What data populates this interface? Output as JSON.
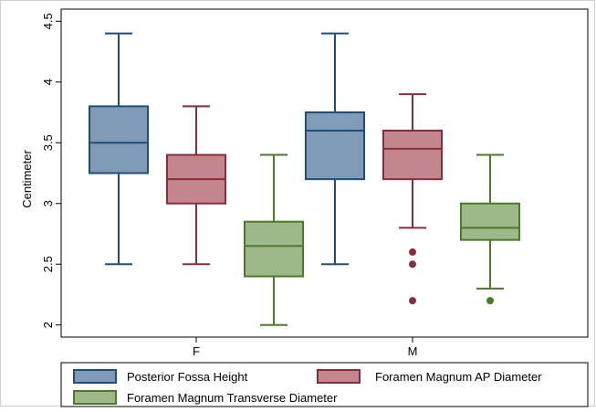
{
  "chart_data": {
    "type": "box",
    "ylabel": "Centimeter",
    "ylim": [
      1.9,
      4.6
    ],
    "yticks": [
      "2",
      "2.5",
      "3",
      "3.5",
      "4",
      "4.5"
    ],
    "ytick_values": [
      2,
      2.5,
      3,
      3.5,
      4,
      4.5
    ],
    "groups": [
      "F",
      "M"
    ],
    "legend_position": "bottom",
    "series": [
      {
        "name": "Posterior Fossa Height",
        "fill": "#7f9bb8",
        "stroke": "#1f4e79",
        "boxes": [
          {
            "group": "F",
            "whisker_low": 2.5,
            "q1": 3.25,
            "median": 3.5,
            "q3": 3.8,
            "whisker_high": 4.4,
            "outliers": []
          },
          {
            "group": "M",
            "whisker_low": 2.5,
            "q1": 3.2,
            "median": 3.6,
            "q3": 3.75,
            "whisker_high": 4.4,
            "outliers": []
          }
        ]
      },
      {
        "name": "Foramen Magnum AP Diameter",
        "fill": "#c4868e",
        "stroke": "#8b2c3a",
        "boxes": [
          {
            "group": "F",
            "whisker_low": 2.5,
            "q1": 3.0,
            "median": 3.2,
            "q3": 3.4,
            "whisker_high": 3.8,
            "outliers": []
          },
          {
            "group": "M",
            "whisker_low": 2.8,
            "q1": 3.2,
            "median": 3.45,
            "q3": 3.6,
            "whisker_high": 3.9,
            "outliers": [
              2.6,
              2.5,
              2.2
            ]
          }
        ]
      },
      {
        "name": "Foramen Magnum Transverse Diameter",
        "fill": "#9fb889",
        "stroke": "#4a7a2a",
        "boxes": [
          {
            "group": "F",
            "whisker_low": 2.0,
            "q1": 2.4,
            "median": 2.65,
            "q3": 2.85,
            "whisker_high": 3.4,
            "outliers": []
          },
          {
            "group": "M",
            "whisker_low": 2.3,
            "q1": 2.7,
            "median": 2.8,
            "q3": 3.0,
            "whisker_high": 3.4,
            "outliers": [
              2.2
            ]
          }
        ]
      }
    ]
  }
}
